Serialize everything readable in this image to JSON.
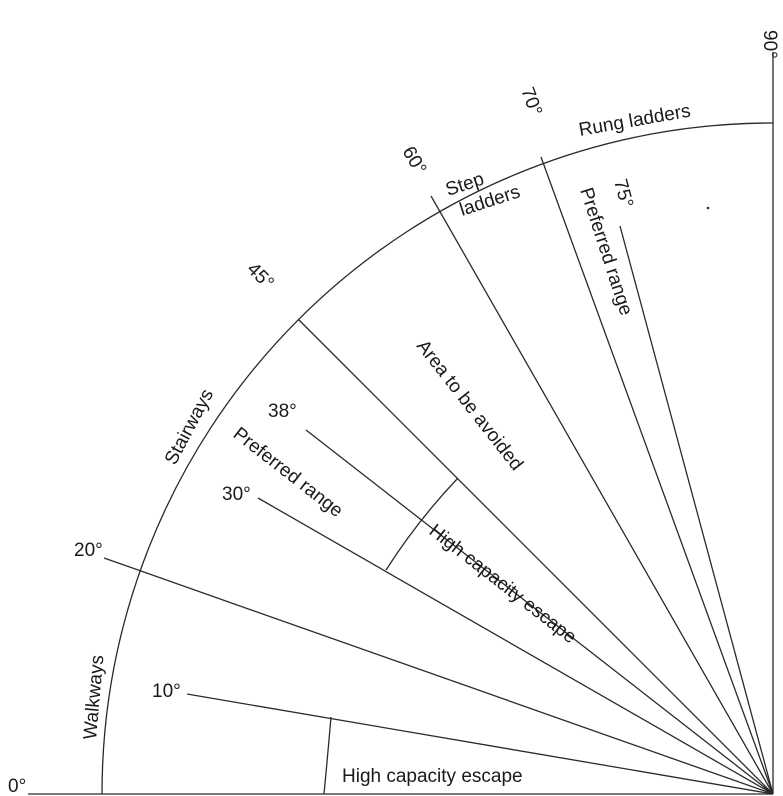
{
  "angles": {
    "a0": "0°",
    "a10": "10°",
    "a20": "20°",
    "a30": "30°",
    "a38": "38°",
    "a45": "45°",
    "a60": "60°",
    "a70": "70°",
    "a75": "75°",
    "a90": "90°"
  },
  "zones": {
    "walkways": "Walkways",
    "stairways": "Stairways",
    "step_ladders_line1": "Step",
    "step_ladders_line2": "ladders",
    "rung_ladders": "Rung ladders",
    "high_capacity_escape_low": "High capacity escape",
    "high_capacity_escape_mid": "High capacity escape",
    "preferred_range_stairs": "Preferred range",
    "preferred_range_ladders": "Preferred range",
    "area_to_be_avoided": "Area to be avoided"
  }
}
